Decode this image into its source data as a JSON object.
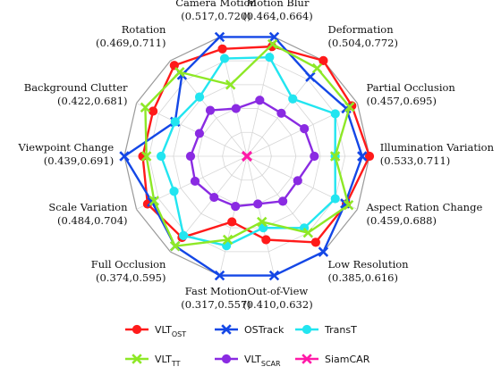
{
  "chart_data": {
    "type": "radar",
    "grid": true,
    "rlim": [
      0,
      1
    ],
    "axes": [
      {
        "name": "Illumination Variation",
        "range": "(0.533,0.711)",
        "min": 0.533,
        "max": 0.711
      },
      {
        "name": "Partial Occlusion",
        "range": "(0.457,0.695)",
        "min": 0.457,
        "max": 0.695
      },
      {
        "name": "Deformation",
        "range": "(0.504,0.772)",
        "min": 0.504,
        "max": 0.772
      },
      {
        "name": "Motion Blur",
        "range": "(0.464,0.664)",
        "min": 0.464,
        "max": 0.664
      },
      {
        "name": "Camera Motion",
        "range": "(0.517,0.720)",
        "min": 0.517,
        "max": 0.72
      },
      {
        "name": "Rotation",
        "range": "(0.469,0.711)",
        "min": 0.469,
        "max": 0.711
      },
      {
        "name": "Background Clutter",
        "range": "(0.422,0.681)",
        "min": 0.422,
        "max": 0.681
      },
      {
        "name": "Viewpoint Change",
        "range": "(0.439,0.691)",
        "min": 0.439,
        "max": 0.691
      },
      {
        "name": "Scale Variation",
        "range": "(0.484,0.704)",
        "min": 0.484,
        "max": 0.704
      },
      {
        "name": "Full Occlusion",
        "range": "(0.374,0.595)",
        "min": 0.374,
        "max": 0.595
      },
      {
        "name": "Fast Motion",
        "range": "(0.317,0.557)",
        "min": 0.317,
        "max": 0.557
      },
      {
        "name": "Out-of-View",
        "range": "(0.410,0.632)",
        "min": 0.41,
        "max": 0.632
      },
      {
        "name": "Low Resolution",
        "range": "(0.385,0.616)",
        "min": 0.385,
        "max": 0.616
      },
      {
        "name": "Aspect Ration Change",
        "range": "(0.459,0.688)",
        "min": 0.459,
        "max": 0.688
      }
    ],
    "series": [
      {
        "name": "VLT_OST",
        "base": "VLT",
        "sub": "OST",
        "color": "#ff1a1a",
        "marker": "circle",
        "values": [
          1.0,
          0.95,
          1.0,
          0.92,
          0.9,
          0.95,
          0.85,
          0.85,
          0.9,
          0.85,
          0.55,
          0.7,
          0.9,
          0.9
        ]
      },
      {
        "name": "OSTrack",
        "base": "OSTrack",
        "sub": "",
        "color": "#1447e6",
        "marker": "x",
        "values": [
          0.94,
          0.9,
          0.83,
          1.0,
          1.0,
          0.85,
          0.65,
          1.0,
          0.86,
          0.94,
          1.0,
          1.0,
          1.0,
          0.89
        ]
      },
      {
        "name": "TransT",
        "base": "TransT",
        "sub": "",
        "color": "#22e5f0",
        "marker": "circle",
        "values": [
          0.72,
          0.8,
          0.6,
          0.83,
          0.82,
          0.62,
          0.65,
          0.7,
          0.66,
          0.83,
          0.75,
          0.6,
          0.75,
          0.8
        ]
      },
      {
        "name": "VLT_TT",
        "base": "VLT",
        "sub": "TT",
        "color": "#8ee826",
        "marker": "x",
        "values": [
          0.72,
          0.93,
          0.92,
          0.94,
          0.6,
          0.88,
          0.92,
          0.82,
          0.84,
          0.94,
          0.7,
          0.55,
          0.8,
          0.92
        ]
      },
      {
        "name": "VLT_SCAR",
        "base": "VLT",
        "sub": "SCAR",
        "color": "#8a2be2",
        "marker": "circle",
        "values": [
          0.55,
          0.52,
          0.45,
          0.47,
          0.4,
          0.48,
          0.43,
          0.46,
          0.47,
          0.43,
          0.42,
          0.4,
          0.47,
          0.46
        ]
      },
      {
        "name": "SiamCAR",
        "base": "SiamCAR",
        "sub": "",
        "color": "#ff1aa8",
        "marker": "x",
        "values": [
          0,
          0,
          0,
          0,
          0,
          0,
          0,
          0,
          0,
          0,
          0,
          0,
          0,
          0
        ]
      }
    ],
    "legend": "bottom",
    "legend_order": [
      "VLT_OST",
      "OSTrack",
      "TransT",
      "VLT_TT",
      "VLT_SCAR",
      "SiamCAR"
    ]
  }
}
